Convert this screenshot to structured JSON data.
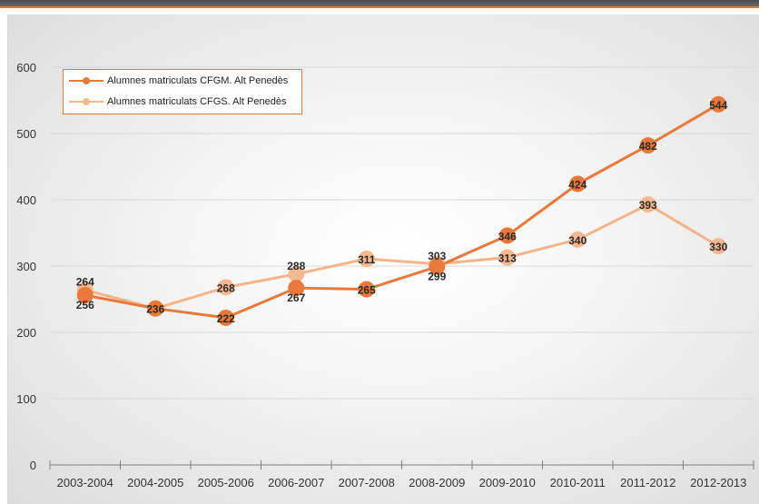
{
  "chart_data": {
    "type": "line",
    "categories": [
      "2003-2004",
      "2004-2005",
      "2005-2006",
      "2006-2007",
      "2007-2008",
      "2008-2009",
      "2009-2010",
      "2010-2011",
      "2011-2012",
      "2012-2013"
    ],
    "series": [
      {
        "name": "Alumnes matriculats CFGM. Alt Penedès",
        "values": [
          256,
          236,
          222,
          267,
          265,
          299,
          346,
          424,
          482,
          544
        ],
        "color": "#e8793a",
        "marker_color": "#e8793a"
      },
      {
        "name": "Alumnes matriculats CFGS. Alt Penedès",
        "values": [
          264,
          236,
          268,
          288,
          311,
          303,
          313,
          340,
          393,
          330
        ],
        "color": "#f5b48a",
        "marker_color": "#f7b890"
      }
    ],
    "y_ticks": [
      "0",
      "100",
      "200",
      "300",
      "400",
      "500",
      "600"
    ],
    "ylim": [
      0,
      600
    ],
    "grid": true,
    "legend_position": "top-left",
    "title": "",
    "xlabel": "",
    "ylabel": ""
  }
}
